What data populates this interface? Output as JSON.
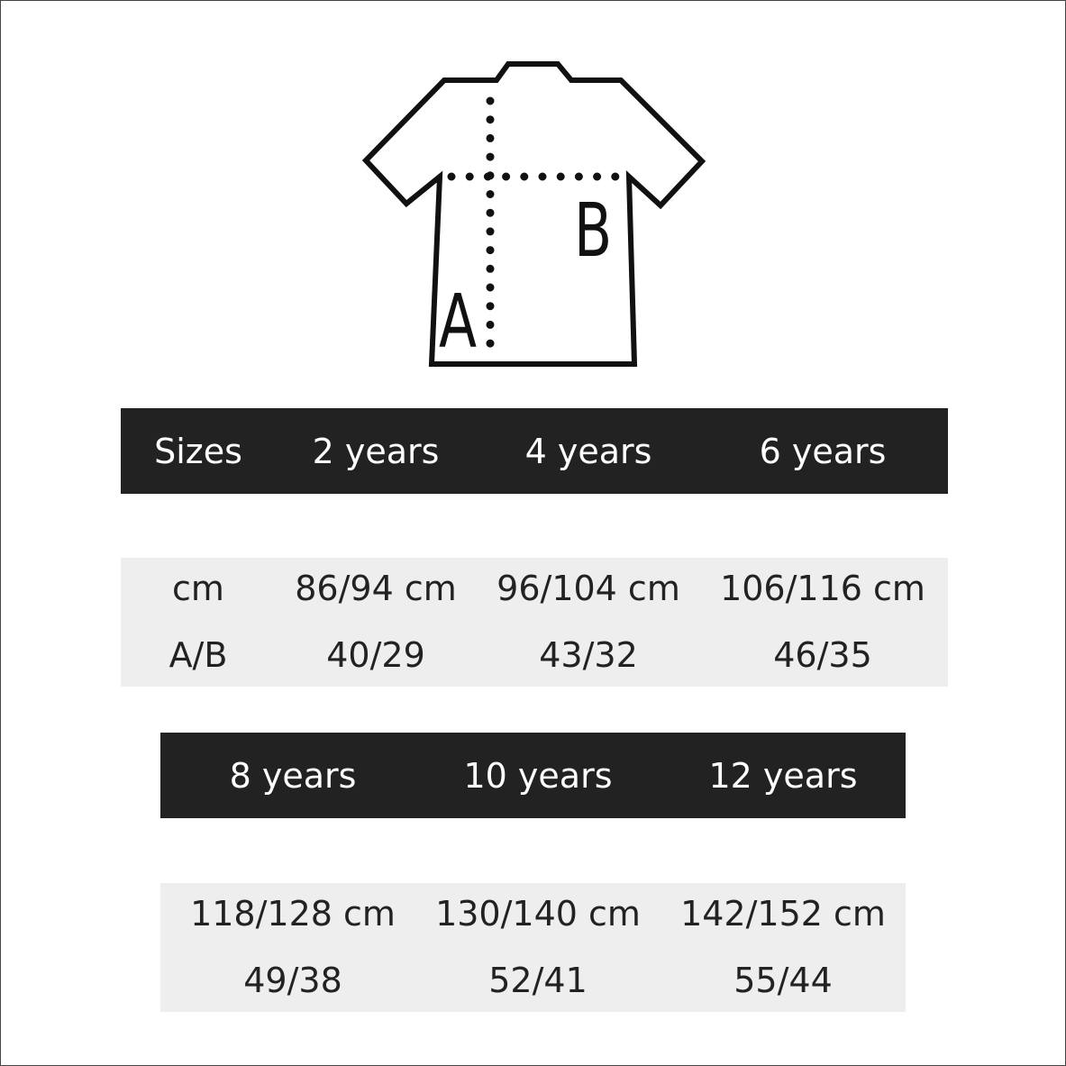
{
  "diagram": {
    "label_a": "A",
    "label_b": "B"
  },
  "table1": {
    "headers": [
      "Sizes",
      "2 years",
      "4 years",
      "6 years"
    ],
    "row_cm": [
      "cm",
      "86/94 cm",
      "96/104 cm",
      "106/116 cm"
    ],
    "row_ab": [
      "A/B",
      "40/29",
      "43/32",
      "46/35"
    ]
  },
  "table2": {
    "headers": [
      "8 years",
      "10 years",
      "12 years"
    ],
    "row_cm": [
      "118/128 cm",
      "130/140 cm",
      "142/152 cm"
    ],
    "row_ab": [
      "49/38",
      "52/41",
      "55/44"
    ]
  },
  "colors": {
    "header_bg": "#222222",
    "row_bg": "#eeeeee"
  }
}
